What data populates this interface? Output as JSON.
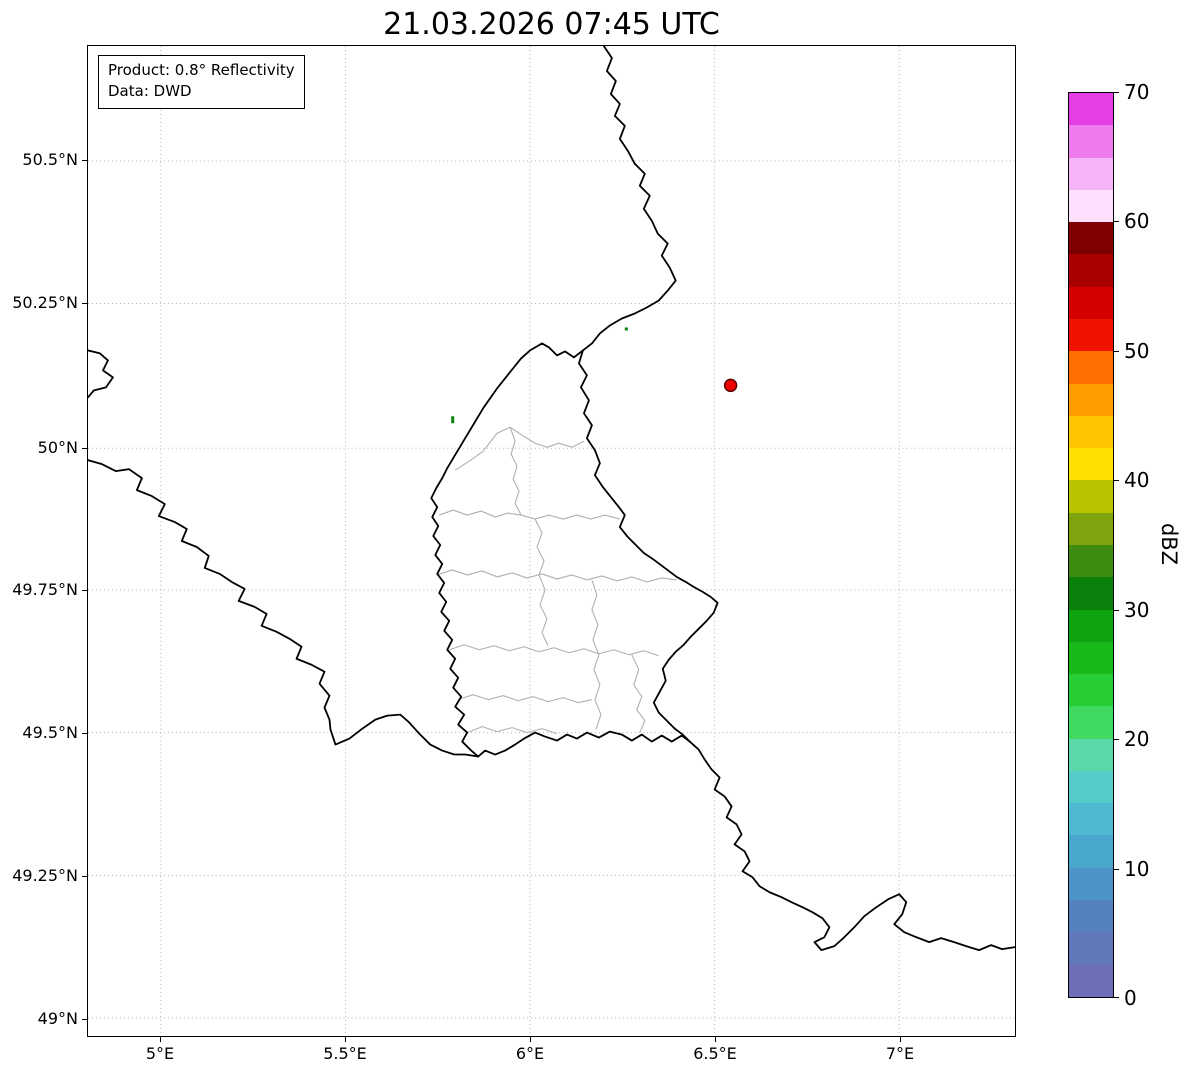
{
  "title": "21.03.2026 07:45 UTC",
  "info_box": {
    "line1": "Product: 0.8° Reflectivity",
    "line2": "Data: DWD"
  },
  "axes": {
    "x_tick_labels": [
      "5°E",
      "5.5°E",
      "6°E",
      "6.5°E",
      "7°E"
    ],
    "y_tick_labels": [
      "50.5°N",
      "50.25°N",
      "50°N",
      "49.75°N",
      "49.5°N",
      "49.25°N",
      "49°N"
    ],
    "grid_style": "dotted"
  },
  "colorbar": {
    "label": "dBZ",
    "tick_labels": [
      "0",
      "10",
      "20",
      "30",
      "40",
      "50",
      "60",
      "70"
    ],
    "min": 0,
    "max": 70,
    "colors_bottom_to_top": [
      "#6d6fb6",
      "#6277ba",
      "#5681c0",
      "#4c93c7",
      "#49a6cc",
      "#4fb9d1",
      "#55cbca",
      "#5bd8a9",
      "#3fd95f",
      "#27cd34",
      "#18b918",
      "#0fa30f",
      "#0b800b",
      "#3f8c12",
      "#7fa30e",
      "#b8c400",
      "#ffe000",
      "#ffc400",
      "#ff9c00",
      "#ff6e00",
      "#f01400",
      "#d40000",
      "#a80000",
      "#7f0000",
      "#fde0fd",
      "#f7b3f7",
      "#ee7bee",
      "#e63ee6"
    ]
  },
  "styles": {
    "border_color": "#000000",
    "canton_border_color": "#b0b0b0",
    "grid_color": "#b3b3b3",
    "marker_fill": "#ee0000",
    "marker_edge": "#5a0000",
    "echo_color": "#0b800b"
  },
  "chart_data": {
    "type": "scatter",
    "title": "21.03.2026 07:45 UTC",
    "xlabel": "",
    "ylabel": "",
    "x_ticks": [
      "5°E",
      "5.5°E",
      "6°E",
      "6.5°E",
      "7°E"
    ],
    "y_ticks": [
      "49°N",
      "49.25°N",
      "49.5°N",
      "49.75°N",
      "50°N",
      "50.25°N",
      "50.5°N"
    ],
    "xlim_approx": [
      4.8,
      7.31
    ],
    "ylim_approx": [
      48.97,
      50.7
    ],
    "grid": "dotted",
    "colorbar": {
      "label": "dBZ",
      "range": [
        0,
        70
      ],
      "tick_step": 10
    },
    "points": [
      {
        "name": "radar-site-marker",
        "x": 6.54,
        "y": 50.11,
        "style": "red filled circle"
      },
      {
        "name": "radar-echo",
        "x": 5.79,
        "y": 50.05,
        "style": "small green echo"
      },
      {
        "name": "radar-echo",
        "x": 6.26,
        "y": 50.2,
        "style": "small green echo"
      }
    ]
  }
}
